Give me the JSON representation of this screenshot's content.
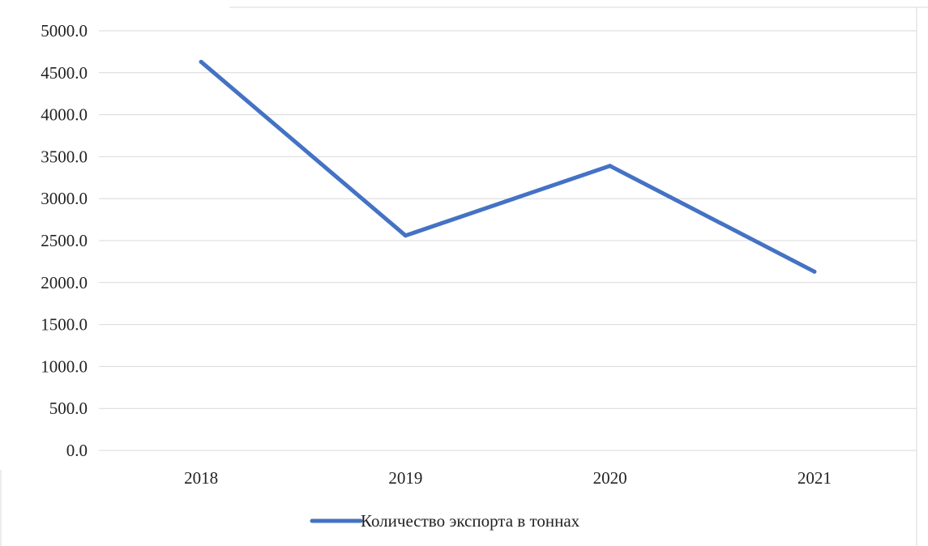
{
  "colors": {
    "series": "#4472c4",
    "grid": "#d9d9d9",
    "border": "#d9d9d9",
    "text": "#222222"
  },
  "chart_data": {
    "type": "line",
    "title": "",
    "xlabel": "",
    "ylabel": "",
    "categories": [
      "2018",
      "2019",
      "2020",
      "2021"
    ],
    "series": [
      {
        "name": "Количество экспорта в тоннах",
        "values": [
          4630,
          2560,
          3390,
          2130
        ]
      }
    ],
    "ylim": [
      0,
      5000
    ],
    "y_ticks": [
      "0.0",
      "500.0",
      "1000.0",
      "1500.0",
      "2000.0",
      "2500.0",
      "3000.0",
      "3500.0",
      "4000.0",
      "4500.0",
      "5000.0"
    ],
    "grid": true,
    "legend_position": "bottom"
  }
}
